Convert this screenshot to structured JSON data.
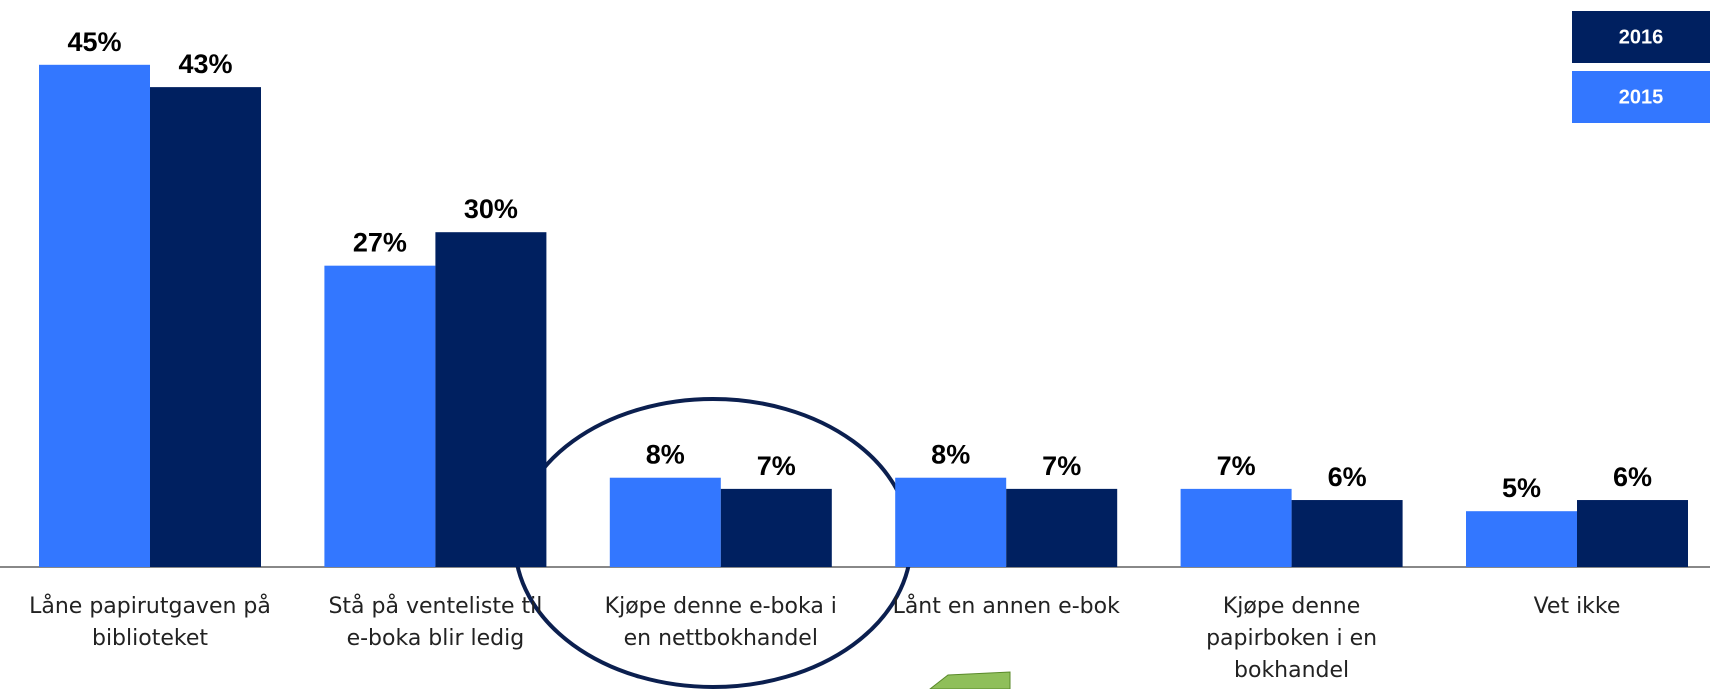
{
  "chart_data": {
    "type": "bar",
    "categories": [
      "Låne papirutgaven på biblioteket",
      "Stå på venteliste til e-boka blir ledig",
      "Kjøpe denne e-boka i en nettbokhandel",
      "Lånt en annen e-bok",
      "Kjøpe denne papirboken i en bokhandel",
      "Vet ikke"
    ],
    "series": [
      {
        "name": "2015",
        "color": "#3377ff",
        "values": [
          45,
          27,
          8,
          8,
          7,
          5
        ],
        "value_labels": [
          "45%",
          "27%",
          "8%",
          "8%",
          "7%",
          "5%"
        ]
      },
      {
        "name": "2016",
        "color": "#002060",
        "values": [
          43,
          30,
          7,
          7,
          6,
          6
        ],
        "value_labels": [
          "43%",
          "30%",
          "7%",
          "7%",
          "6%",
          "6%"
        ]
      }
    ]
  }
}
